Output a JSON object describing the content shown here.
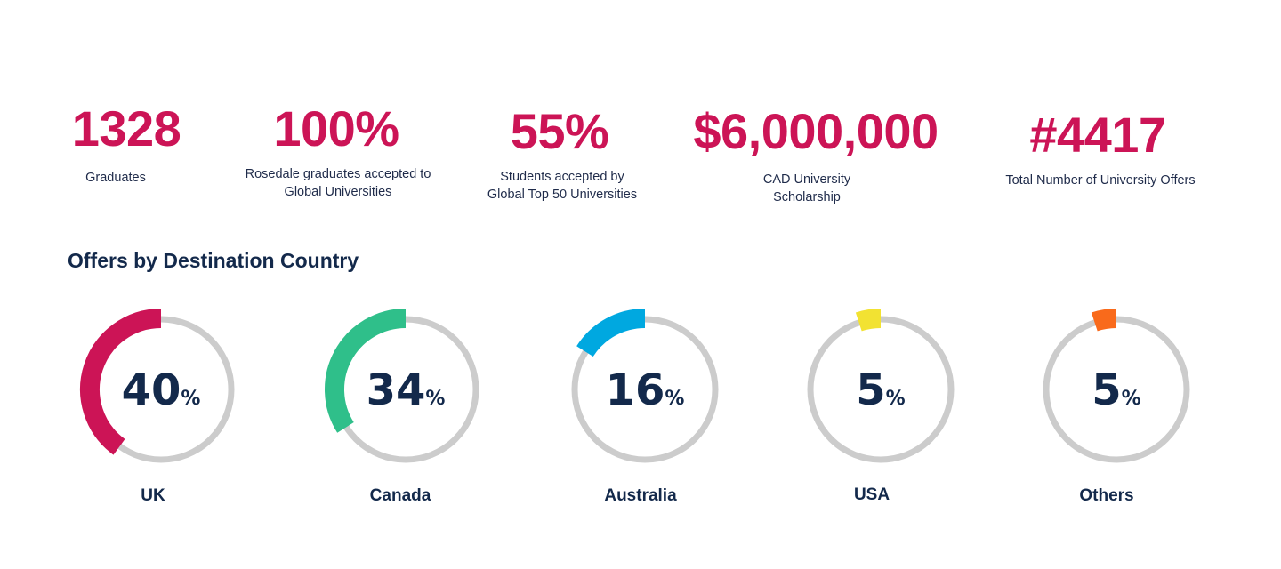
{
  "stats": [
    {
      "value": "1328",
      "label": "Graduates"
    },
    {
      "value": "100%",
      "label": "Rosedale graduates accepted to Global Universities"
    },
    {
      "value": "55%",
      "label": "Students accepted by Global Top 50 Universities"
    },
    {
      "value": "$6,000,000",
      "label": "CAD University Scholarship"
    },
    {
      "value": "#4417",
      "label": "Total Number of University Offers"
    }
  ],
  "section_title": "Offers by Destination Country",
  "colors": {
    "stat_value": "#cc1456",
    "text_dark": "#13294b",
    "track": "#cccccc"
  },
  "chart_data": {
    "type": "pie",
    "title": "Offers by Destination Country",
    "unit": "%",
    "categories": [
      "UK",
      "Canada",
      "Australia",
      "USA",
      "Others"
    ],
    "values": [
      40,
      34,
      16,
      5,
      5
    ],
    "colors": [
      "#cc1456",
      "#2fbf8a",
      "#00a8e0",
      "#f2e232",
      "#f96a1b"
    ]
  }
}
